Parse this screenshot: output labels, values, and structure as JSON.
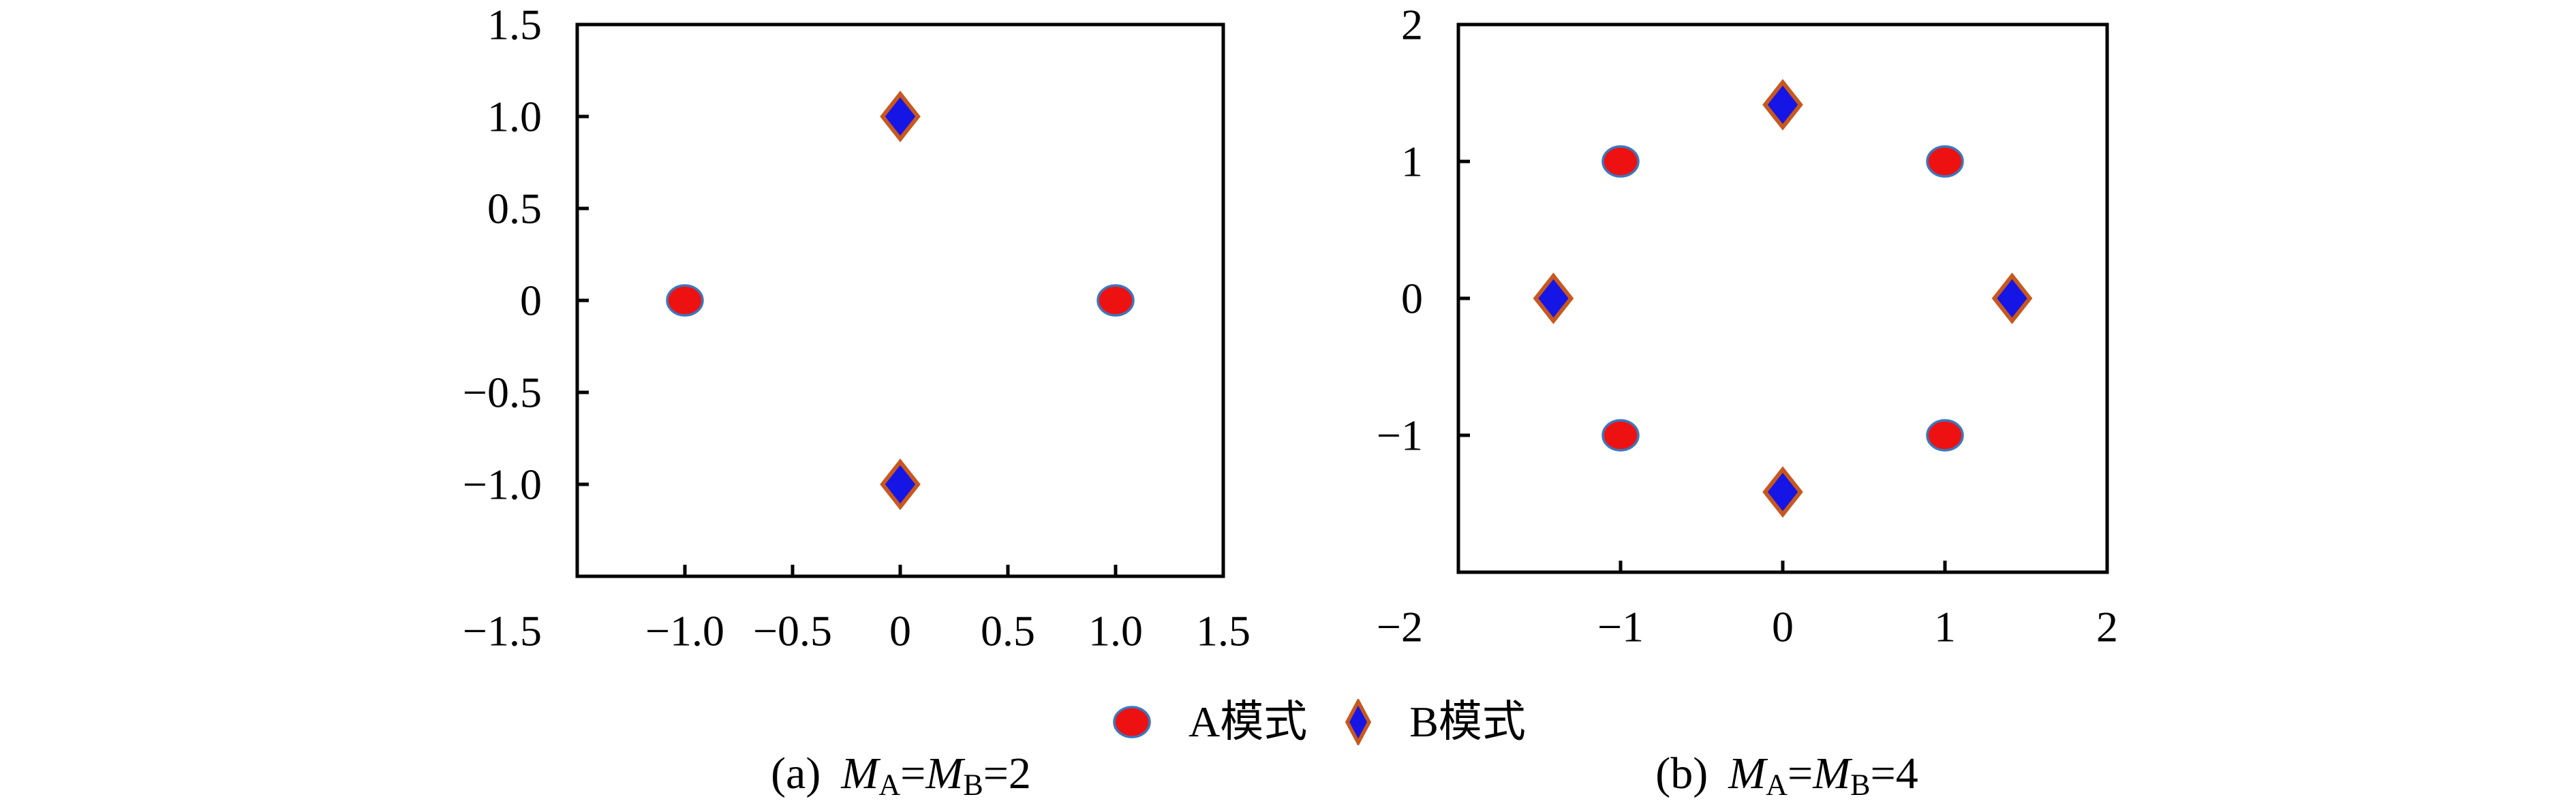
{
  "figure": {
    "background": "#ffffff"
  },
  "colors": {
    "axis": "#000000",
    "text": "#000000",
    "circle_fill": "#ee1111",
    "circle_edge": "#3a78be",
    "diamond_fill": "#1515e6",
    "diamond_edge": "#c8581e"
  },
  "legend": {
    "items": [
      {
        "marker": "circle",
        "label": "A模式"
      },
      {
        "marker": "diamond",
        "label": "B模式"
      }
    ]
  },
  "captions": [
    {
      "tag": "(a)",
      "m1": "M",
      "s1": "A",
      "eq1": "=",
      "m2": "M",
      "s2": "B",
      "eq2": "=",
      "val": "2"
    },
    {
      "tag": "(b)",
      "m1": "M",
      "s1": "A",
      "eq1": "=",
      "m2": "M",
      "s2": "B",
      "eq2": "=",
      "val": "4"
    }
  ],
  "chart_data": [
    {
      "type": "scatter",
      "title": "(a) MA=MB=2",
      "xlabel": "",
      "ylabel": "",
      "xlim": [
        -1.5,
        1.5
      ],
      "ylim": [
        -1.5,
        1.5
      ],
      "grid": false,
      "x_ticks": [
        -1,
        -0.5,
        0,
        0.5,
        1
      ],
      "y_ticks": [
        1,
        0.5,
        0,
        -0.5,
        -1
      ],
      "x_labels": [
        {
          "v": -1,
          "t": "−1.0"
        },
        {
          "v": -0.5,
          "t": "−0.5"
        },
        {
          "v": 0,
          "t": "0"
        },
        {
          "v": 0.5,
          "t": "0.5"
        },
        {
          "v": 1,
          "t": "1.0"
        },
        {
          "v": 1.5,
          "t": "1.5"
        }
      ],
      "y_labels": [
        {
          "v": 1.5,
          "t": "1.5"
        },
        {
          "v": 1,
          "t": "1.0"
        },
        {
          "v": 0.5,
          "t": "0.5"
        },
        {
          "v": 0,
          "t": "0"
        },
        {
          "v": -0.5,
          "t": "−0.5"
        },
        {
          "v": -1,
          "t": "−1.0"
        }
      ],
      "corner_label": "−1.5",
      "series": [
        {
          "name": "A模式",
          "marker": "circle",
          "points": [
            [
              -1,
              0
            ],
            [
              1,
              0
            ]
          ]
        },
        {
          "name": "B模式",
          "marker": "diamond",
          "points": [
            [
              0,
              1
            ],
            [
              0,
              -1
            ]
          ]
        }
      ]
    },
    {
      "type": "scatter",
      "title": "(b) MA=MB=4",
      "xlabel": "",
      "ylabel": "",
      "xlim": [
        -2,
        2
      ],
      "ylim": [
        -2,
        2
      ],
      "grid": false,
      "x_ticks": [
        -1,
        0,
        1
      ],
      "y_ticks": [
        1,
        0,
        -1
      ],
      "x_labels": [
        {
          "v": -1,
          "t": "−1"
        },
        {
          "v": 0,
          "t": "0"
        },
        {
          "v": 1,
          "t": "1"
        },
        {
          "v": 2,
          "t": "2"
        }
      ],
      "y_labels": [
        {
          "v": 2,
          "t": "2"
        },
        {
          "v": 1,
          "t": "1"
        },
        {
          "v": 0,
          "t": "0"
        },
        {
          "v": -1,
          "t": "−1"
        }
      ],
      "corner_label": "−2",
      "series": [
        {
          "name": "A模式",
          "marker": "circle",
          "points": [
            [
              -1,
              1
            ],
            [
              1,
              1
            ],
            [
              1,
              -1
            ],
            [
              -1,
              -1
            ]
          ]
        },
        {
          "name": "B模式",
          "marker": "diamond",
          "points": [
            [
              0,
              1.414
            ],
            [
              1.414,
              0
            ],
            [
              0,
              -1.414
            ],
            [
              -1.414,
              0
            ]
          ]
        }
      ]
    }
  ]
}
